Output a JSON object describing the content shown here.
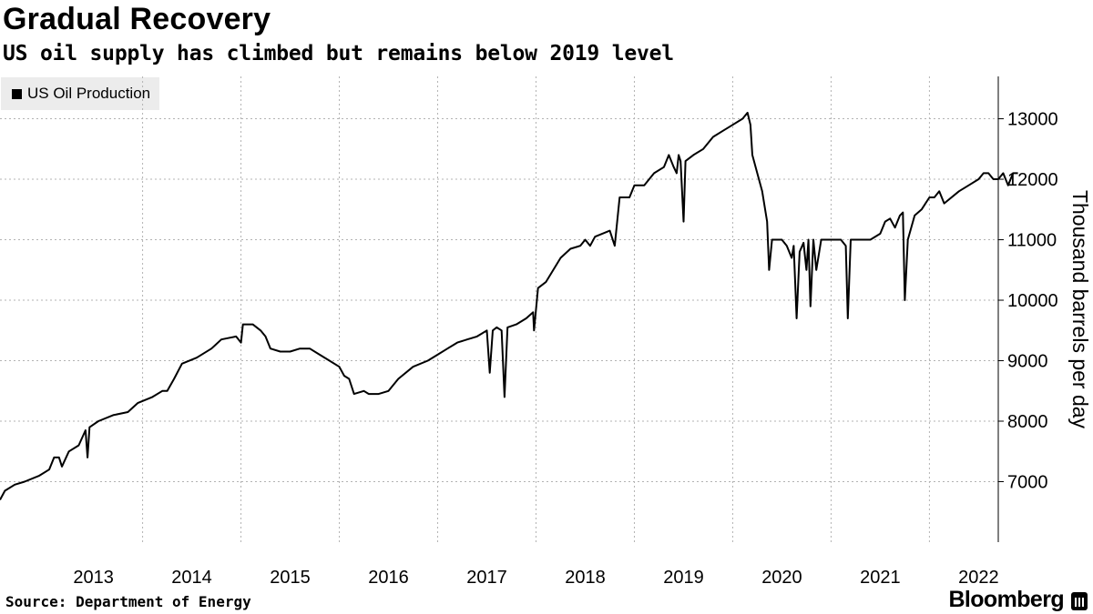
{
  "header": {
    "title": "Gradual Recovery",
    "subtitle": "US oil supply has climbed but remains below 2019 level"
  },
  "footer": {
    "source": "Source: Department of Energy",
    "brand": "Bloomberg"
  },
  "colors": {
    "line": "#000000",
    "grid": "#b3b3b3",
    "legend_bg": "#ececec"
  },
  "chart_data": {
    "type": "line",
    "title": "Gradual Recovery",
    "subtitle": "US oil supply has climbed but remains below 2019 level",
    "ylabel": "Thousand barrels per day",
    "xlabel": "",
    "y_ticks": [
      7000,
      8000,
      9000,
      10000,
      11000,
      12000,
      13000
    ],
    "x_ticks": [
      "2013",
      "2014",
      "2015",
      "2016",
      "2017",
      "2018",
      "2019",
      "2020",
      "2021",
      "2022"
    ],
    "ylim": [
      6000,
      13700
    ],
    "xlim": [
      2012.55,
      2022.7
    ],
    "grid": true,
    "legend_position": "top-left",
    "series": [
      {
        "name": "US Oil Production",
        "points": [
          [
            2012.55,
            6700
          ],
          [
            2012.6,
            6850
          ],
          [
            2012.7,
            6950
          ],
          [
            2012.8,
            7000
          ],
          [
            2012.95,
            7100
          ],
          [
            2013.05,
            7200
          ],
          [
            2013.1,
            7400
          ],
          [
            2013.15,
            7400
          ],
          [
            2013.18,
            7250
          ],
          [
            2013.25,
            7500
          ],
          [
            2013.35,
            7600
          ],
          [
            2013.42,
            7850
          ],
          [
            2013.44,
            7400
          ],
          [
            2013.46,
            7900
          ],
          [
            2013.55,
            8000
          ],
          [
            2013.7,
            8100
          ],
          [
            2013.85,
            8150
          ],
          [
            2013.95,
            8300
          ],
          [
            2014.1,
            8400
          ],
          [
            2014.2,
            8500
          ],
          [
            2014.25,
            8500
          ],
          [
            2014.32,
            8700
          ],
          [
            2014.4,
            8950
          ],
          [
            2014.55,
            9050
          ],
          [
            2014.7,
            9200
          ],
          [
            2014.8,
            9350
          ],
          [
            2014.95,
            9400
          ],
          [
            2015.0,
            9300
          ],
          [
            2015.02,
            9600
          ],
          [
            2015.12,
            9600
          ],
          [
            2015.2,
            9500
          ],
          [
            2015.25,
            9400
          ],
          [
            2015.3,
            9200
          ],
          [
            2015.4,
            9150
          ],
          [
            2015.5,
            9150
          ],
          [
            2015.6,
            9200
          ],
          [
            2015.7,
            9200
          ],
          [
            2015.8,
            9100
          ],
          [
            2015.9,
            9000
          ],
          [
            2016.0,
            8900
          ],
          [
            2016.05,
            8750
          ],
          [
            2016.1,
            8700
          ],
          [
            2016.15,
            8450
          ],
          [
            2016.25,
            8500
          ],
          [
            2016.3,
            8450
          ],
          [
            2016.4,
            8450
          ],
          [
            2016.5,
            8500
          ],
          [
            2016.6,
            8700
          ],
          [
            2016.75,
            8900
          ],
          [
            2016.9,
            9000
          ],
          [
            2017.0,
            9100
          ],
          [
            2017.1,
            9200
          ],
          [
            2017.2,
            9300
          ],
          [
            2017.3,
            9350
          ],
          [
            2017.4,
            9400
          ],
          [
            2017.45,
            9450
          ],
          [
            2017.5,
            9500
          ],
          [
            2017.53,
            8800
          ],
          [
            2017.56,
            9500
          ],
          [
            2017.6,
            9550
          ],
          [
            2017.65,
            9500
          ],
          [
            2017.68,
            8400
          ],
          [
            2017.71,
            9550
          ],
          [
            2017.8,
            9600
          ],
          [
            2017.9,
            9700
          ],
          [
            2017.97,
            9800
          ],
          [
            2017.98,
            9500
          ],
          [
            2018.02,
            10200
          ],
          [
            2018.1,
            10300
          ],
          [
            2018.25,
            10700
          ],
          [
            2018.35,
            10850
          ],
          [
            2018.45,
            10900
          ],
          [
            2018.5,
            11000
          ],
          [
            2018.55,
            10900
          ],
          [
            2018.6,
            11050
          ],
          [
            2018.75,
            11150
          ],
          [
            2018.8,
            10900
          ],
          [
            2018.85,
            11700
          ],
          [
            2018.95,
            11700
          ],
          [
            2019.0,
            11900
          ],
          [
            2019.1,
            11900
          ],
          [
            2019.2,
            12100
          ],
          [
            2019.3,
            12200
          ],
          [
            2019.35,
            12400
          ],
          [
            2019.4,
            12200
          ],
          [
            2019.43,
            12100
          ],
          [
            2019.45,
            12400
          ],
          [
            2019.47,
            12300
          ],
          [
            2019.5,
            11300
          ],
          [
            2019.52,
            12300
          ],
          [
            2019.6,
            12400
          ],
          [
            2019.7,
            12500
          ],
          [
            2019.8,
            12700
          ],
          [
            2019.9,
            12800
          ],
          [
            2020.0,
            12900
          ],
          [
            2020.1,
            13000
          ],
          [
            2020.15,
            13100
          ],
          [
            2020.18,
            12900
          ],
          [
            2020.2,
            12400
          ],
          [
            2020.25,
            12100
          ],
          [
            2020.3,
            11800
          ],
          [
            2020.35,
            11300
          ],
          [
            2020.37,
            10500
          ],
          [
            2020.4,
            11000
          ],
          [
            2020.5,
            11000
          ],
          [
            2020.55,
            10900
          ],
          [
            2020.6,
            10700
          ],
          [
            2020.62,
            10900
          ],
          [
            2020.65,
            9700
          ],
          [
            2020.68,
            10800
          ],
          [
            2020.72,
            10950
          ],
          [
            2020.75,
            10500
          ],
          [
            2020.77,
            11000
          ],
          [
            2020.79,
            9900
          ],
          [
            2020.82,
            11000
          ],
          [
            2020.85,
            10500
          ],
          [
            2020.9,
            11000
          ],
          [
            2021.0,
            11000
          ],
          [
            2021.05,
            11000
          ],
          [
            2021.1,
            11000
          ],
          [
            2021.15,
            10900
          ],
          [
            2021.17,
            9700
          ],
          [
            2021.2,
            11000
          ],
          [
            2021.3,
            11000
          ],
          [
            2021.4,
            11000
          ],
          [
            2021.5,
            11100
          ],
          [
            2021.55,
            11300
          ],
          [
            2021.6,
            11350
          ],
          [
            2021.65,
            11200
          ],
          [
            2021.7,
            11400
          ],
          [
            2021.73,
            11450
          ],
          [
            2021.75,
            10000
          ],
          [
            2021.78,
            11000
          ],
          [
            2021.85,
            11400
          ],
          [
            2021.92,
            11500
          ],
          [
            2022.0,
            11700
          ],
          [
            2022.05,
            11700
          ],
          [
            2022.1,
            11800
          ],
          [
            2022.15,
            11600
          ],
          [
            2022.3,
            11800
          ],
          [
            2022.4,
            11900
          ],
          [
            2022.5,
            12000
          ],
          [
            2022.55,
            12100
          ],
          [
            2022.6,
            12100
          ],
          [
            2022.65,
            12000
          ],
          [
            2022.7,
            12000
          ],
          [
            2022.75,
            12100
          ],
          [
            2022.8,
            11900
          ],
          [
            2022.85,
            12100
          ],
          [
            2022.9,
            12100
          ]
        ]
      }
    ]
  }
}
